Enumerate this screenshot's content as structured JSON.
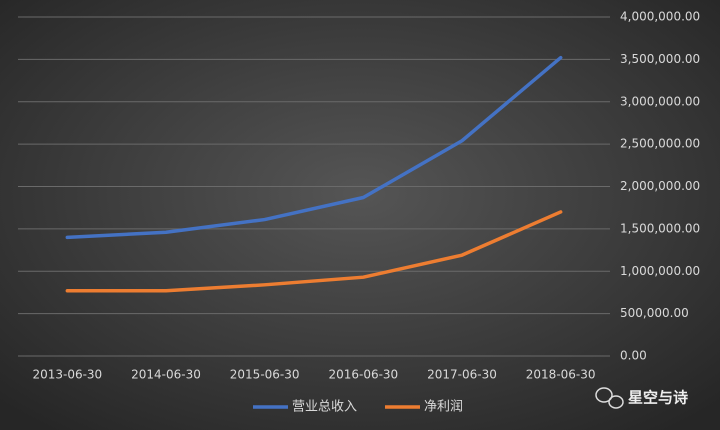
{
  "chart_data": {
    "type": "line",
    "categories": [
      "2013-06-30",
      "2014-06-30",
      "2015-06-30",
      "2016-06-30",
      "2017-06-30",
      "2018-06-30"
    ],
    "series": [
      {
        "name": "营业总收入",
        "color": "#4472c4",
        "values": [
          1400000,
          1460000,
          1610000,
          1870000,
          2540000,
          3520000
        ]
      },
      {
        "name": "净利润",
        "color": "#ed7d31",
        "values": [
          770000,
          770000,
          840000,
          930000,
          1190000,
          1700000
        ]
      }
    ],
    "ylim": [
      0,
      4000000
    ],
    "yticks": [
      {
        "value": 0,
        "label": "0.00"
      },
      {
        "value": 500000,
        "label": "500,000.00"
      },
      {
        "value": 1000000,
        "label": "1,000,000.00"
      },
      {
        "value": 1500000,
        "label": "1,500,000.00"
      },
      {
        "value": 2000000,
        "label": "2,000,000.00"
      },
      {
        "value": 2500000,
        "label": "2,500,000.00"
      },
      {
        "value": 3000000,
        "label": "3,000,000.00"
      },
      {
        "value": 3500000,
        "label": "3,500,000.00"
      },
      {
        "value": 4000000,
        "label": "4,000,000.00"
      }
    ],
    "grid": true,
    "legend": "bottom"
  },
  "watermark": "星空与诗"
}
